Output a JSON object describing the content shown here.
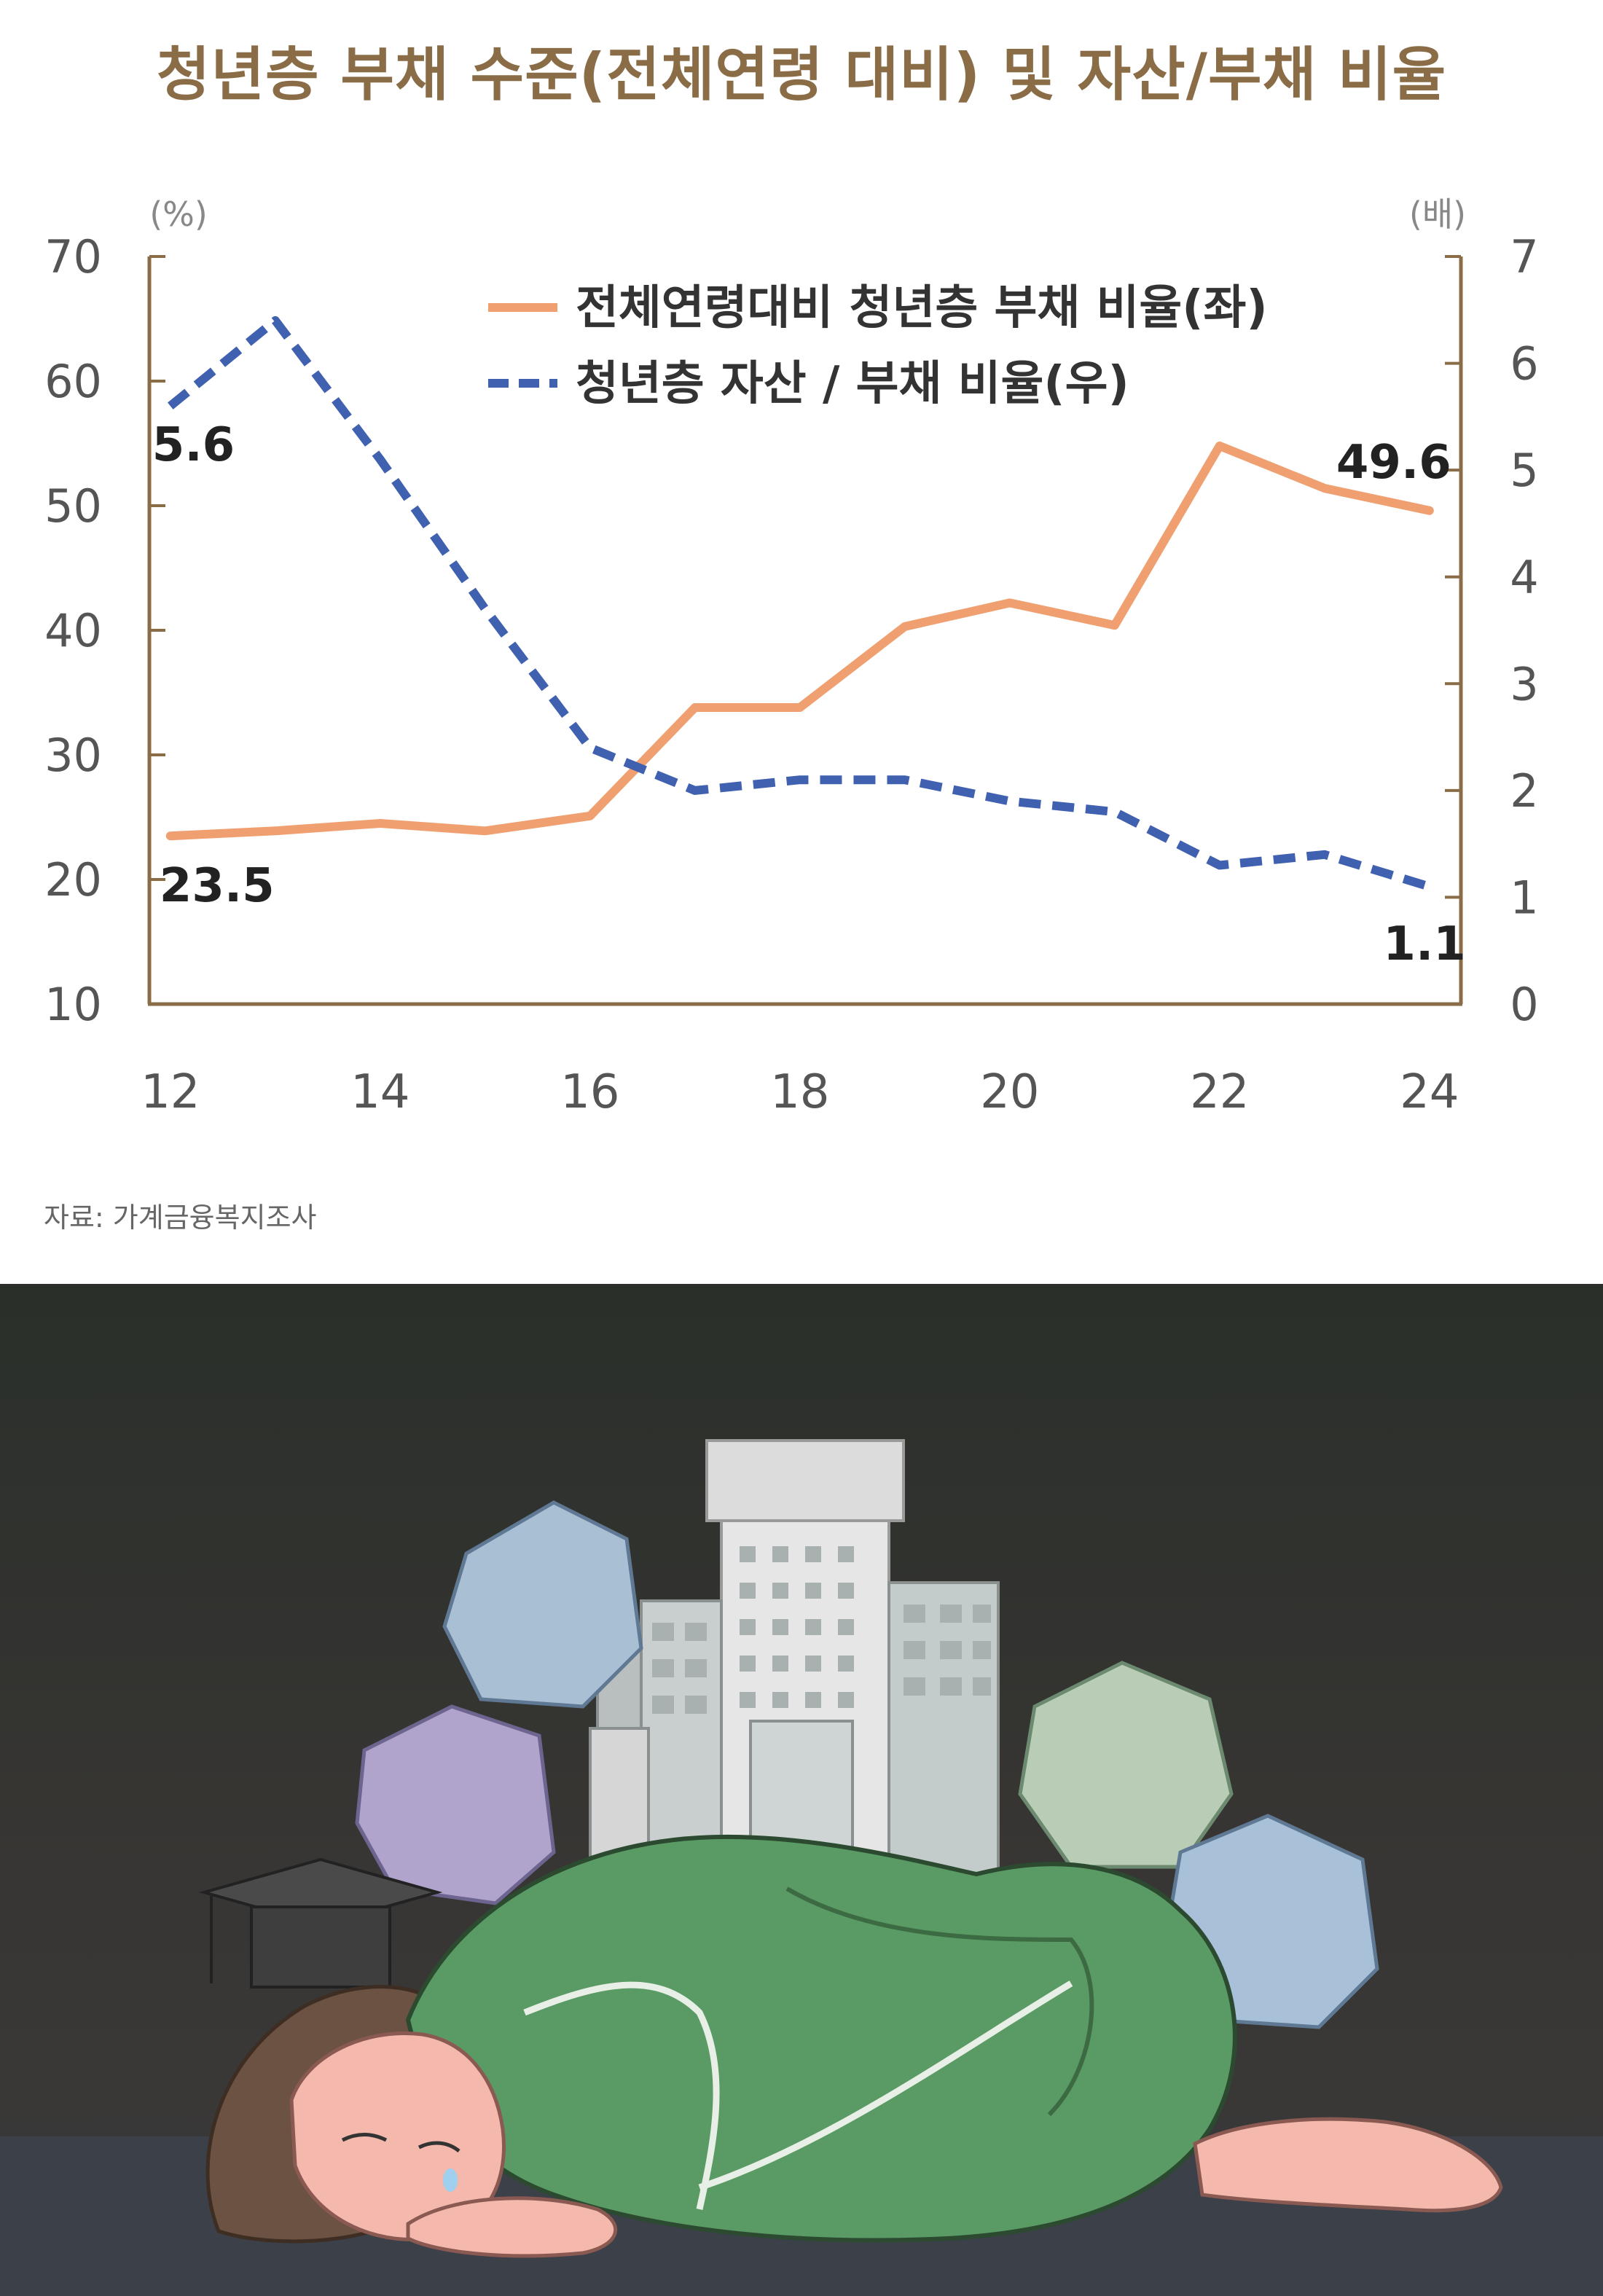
{
  "chart_data": {
    "type": "line",
    "title": "청년층 부채 수준(전체연령 대비) 및 자산/부채 비율",
    "x": [
      12,
      13,
      14,
      15,
      16,
      17,
      18,
      19,
      20,
      21,
      22,
      23,
      24
    ],
    "xticks": [
      "12",
      "14",
      "16",
      "18",
      "20",
      "22",
      "24"
    ],
    "xlim": [
      11.8,
      24.3
    ],
    "y_left": {
      "unit": "(%)",
      "range": [
        10,
        70
      ],
      "ticks": [
        "70",
        "60",
        "50",
        "40",
        "30",
        "20",
        "10"
      ]
    },
    "y_right": {
      "unit": "(배)",
      "range": [
        0,
        7
      ],
      "ticks": [
        "7",
        "6",
        "5",
        "4",
        "3",
        "2",
        "1",
        "0"
      ]
    },
    "series": [
      {
        "name": "전체연령대비 청년층 부채 비율(좌)",
        "axis": "left",
        "style": "solid",
        "color": "#f0a070",
        "values": [
          23.5,
          23.9,
          24.5,
          23.9,
          25.1,
          33.8,
          33.8,
          40.3,
          42.2,
          40.4,
          54.8,
          51.4,
          49.6
        ]
      },
      {
        "name": "청년층 자산 / 부채 비율(우)",
        "axis": "right",
        "style": "dashed",
        "color": "#4060b0",
        "values": [
          5.6,
          6.4,
          5.1,
          3.7,
          2.4,
          2.0,
          2.1,
          2.1,
          1.9,
          1.8,
          1.3,
          1.4,
          1.1
        ]
      }
    ],
    "annotations": [
      "5.6",
      "23.5",
      "49.6",
      "1.1"
    ],
    "grid": false,
    "legend": "top-right"
  },
  "source": "자료: 가계금융복지조사",
  "colors": {
    "title": "#8a6d47",
    "axis": "#8a6d47",
    "illustration_bg": "#2e2e2c",
    "floor": "#3c4048",
    "sweater": "#5a9a64",
    "hair": "#6b5242",
    "skin": "#f4b8ac"
  }
}
